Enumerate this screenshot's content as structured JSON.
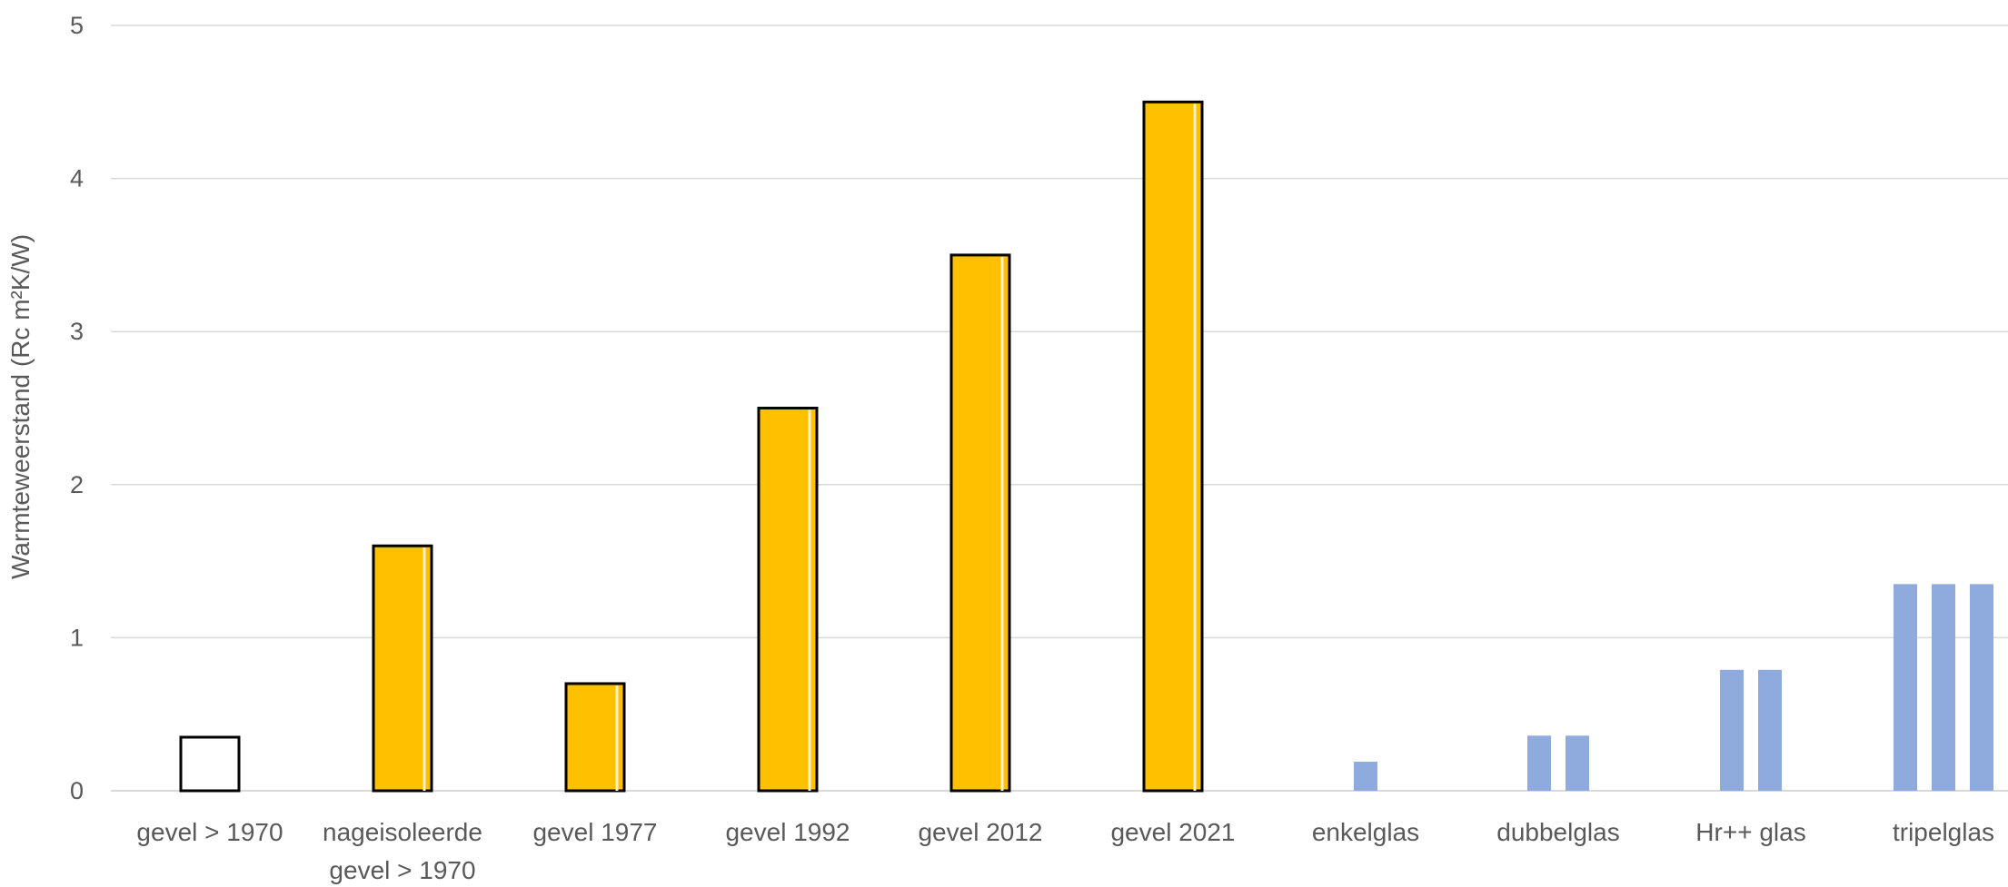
{
  "chart_data": {
    "type": "bar",
    "title": "",
    "xlabel": "",
    "ylabel": "Warmteweerstand (Rc m²K/W)",
    "ylim": [
      0,
      5
    ],
    "yticks": [
      "0",
      "1",
      "2",
      "3",
      "4",
      "5"
    ],
    "grid": true,
    "legend": "none",
    "categories": [
      [
        "gevel > 1970"
      ],
      [
        "nageisoleerde",
        "gevel > 1970"
      ],
      [
        "gevel 1977"
      ],
      [
        "gevel 1992"
      ],
      [
        "gevel 2012"
      ],
      [
        "gevel 2021"
      ],
      [
        "enkelglas"
      ],
      [
        "dubbelglas"
      ],
      [
        "Hr++ glas"
      ],
      [
        "tripelglas"
      ]
    ],
    "values": [
      0.35,
      1.6,
      0.7,
      2.5,
      3.5,
      4.5,
      0.19,
      0.36,
      0.79,
      1.35
    ],
    "bar_styles": [
      "outline",
      "gevel",
      "gevel",
      "gevel",
      "gevel",
      "gevel",
      "glas",
      "glas",
      "glas",
      "glas"
    ],
    "glass_panes": [
      0,
      0,
      0,
      0,
      0,
      0,
      1,
      2,
      2,
      3
    ],
    "colors": {
      "gevel_fill": "#ffc000",
      "gevel_stroke": "#000000",
      "outline_fill": "#ffffff",
      "glas_fill": "#8faadc",
      "grid": "#d9d9d9",
      "text": "#595959"
    }
  }
}
